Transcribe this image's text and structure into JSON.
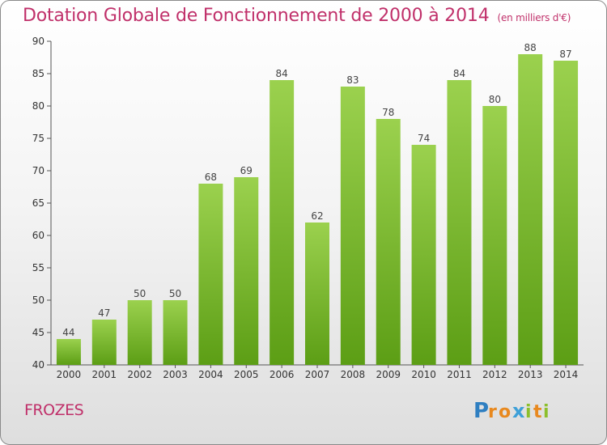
{
  "title": "Dotation Globale de Fonctionnement de 2000 à 2014",
  "unit_note": "(en milliers d'€)",
  "place_name": "FROZES",
  "logo_text": "Proxiti",
  "colors": {
    "title": "#c0306a",
    "bar_top": "#9bd14e",
    "bar_bottom": "#5c9e15"
  },
  "chart_data": {
    "type": "bar",
    "title": "Dotation Globale de Fonctionnement de 2000 à 2014",
    "subtitle": "(en milliers d'€)",
    "categories": [
      "2000",
      "2001",
      "2002",
      "2003",
      "2004",
      "2005",
      "2006",
      "2007",
      "2008",
      "2009",
      "2010",
      "2011",
      "2012",
      "2013",
      "2014"
    ],
    "values": [
      44,
      47,
      50,
      50,
      68,
      69,
      84,
      62,
      83,
      78,
      74,
      84,
      80,
      88,
      87
    ],
    "ylim": [
      40,
      90
    ],
    "yticks": [
      40,
      45,
      50,
      55,
      60,
      65,
      70,
      75,
      80,
      85,
      90
    ],
    "grid": false,
    "data_labels": true
  }
}
